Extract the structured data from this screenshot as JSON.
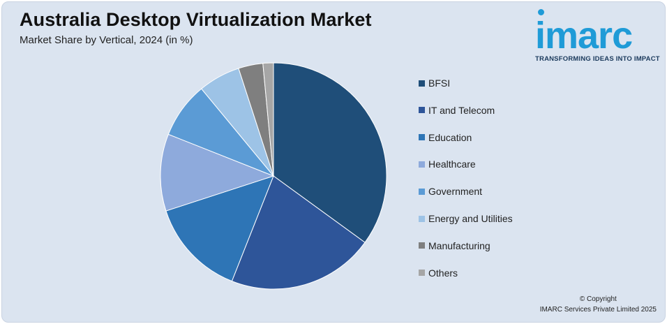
{
  "header": {
    "title": "Australia Desktop Virtualization Market",
    "subtitle": "Market Share by Vertical, 2024 (in %)"
  },
  "logo": {
    "word": "imarc",
    "tagline": "TRANSFORMING IDEAS INTO IMPACT",
    "color": "#1f9bd7"
  },
  "footer": {
    "copyright_line1": "© Copyright",
    "copyright_line2": "IMARC Services Private Limited 2025"
  },
  "chart_data": {
    "type": "pie",
    "title": "Australia Desktop Virtualization Market",
    "subtitle": "Market Share by Vertical, 2024 (in %)",
    "legend_position": "right",
    "categories": [
      "BFSI",
      "IT and Telecom",
      "Education",
      "Healthcare",
      "Government",
      "Energy and Utilities",
      "Manufacturing",
      "Others"
    ],
    "values": [
      35,
      21,
      14,
      11,
      8,
      6,
      3.5,
      1.5
    ],
    "colors": [
      "#1f4e79",
      "#2e5599",
      "#2e75b6",
      "#8eaadc",
      "#5b9bd5",
      "#9dc3e6",
      "#7f7f7f",
      "#a6a6a6"
    ]
  }
}
